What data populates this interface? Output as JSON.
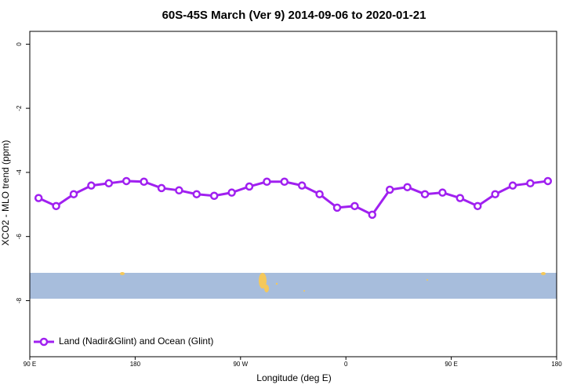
{
  "chart_data": {
    "type": "line",
    "title": "60S-45S March (Ver 9)   2014-09-06 to 2020-01-21",
    "x_label": "Longitude (deg E)",
    "y_label": "XCO2 - MLO trend (ppm)",
    "x": [
      97.5,
      112.5,
      127.5,
      142.5,
      157.5,
      172.5,
      187.5,
      202.5,
      217.5,
      232.5,
      247.5,
      262.5,
      277.5,
      292.5,
      307.5,
      322.5,
      337.5,
      352.5,
      367.5,
      382.5,
      397.5,
      412.5,
      427.5,
      442.5,
      457.5,
      472.5,
      487.5,
      502.5,
      517.5,
      532.5
    ],
    "series": [
      {
        "name": "Land (Nadir&Glint) and Ocean (Glint)",
        "color": "#a020f0",
        "values": [
          -4.8,
          -5.05,
          -4.68,
          -4.41,
          -4.34,
          -4.27,
          -4.29,
          -4.49,
          -4.56,
          -4.68,
          -4.73,
          -4.63,
          -4.44,
          -4.29,
          -4.29,
          -4.41,
          -4.68,
          -5.1,
          -5.05,
          -5.32,
          -4.54,
          -4.46,
          -4.68,
          -4.63,
          -4.8,
          -5.05,
          -4.68,
          -4.41,
          -4.34,
          -4.27
        ]
      }
    ],
    "xlim": [
      90,
      540
    ],
    "xticks": [
      {
        "value": 90,
        "label": "90 E"
      },
      {
        "value": 180,
        "label": "180"
      },
      {
        "value": 270,
        "label": "90 W"
      },
      {
        "value": 360,
        "label": "0"
      },
      {
        "value": 450,
        "label": "90 E"
      },
      {
        "value": 540,
        "label": "180"
      }
    ],
    "ylim": [
      -9.75,
      0.4
    ],
    "yticks": [
      0,
      -2,
      -4,
      -6,
      -8
    ],
    "legend": "bottom-left"
  }
}
